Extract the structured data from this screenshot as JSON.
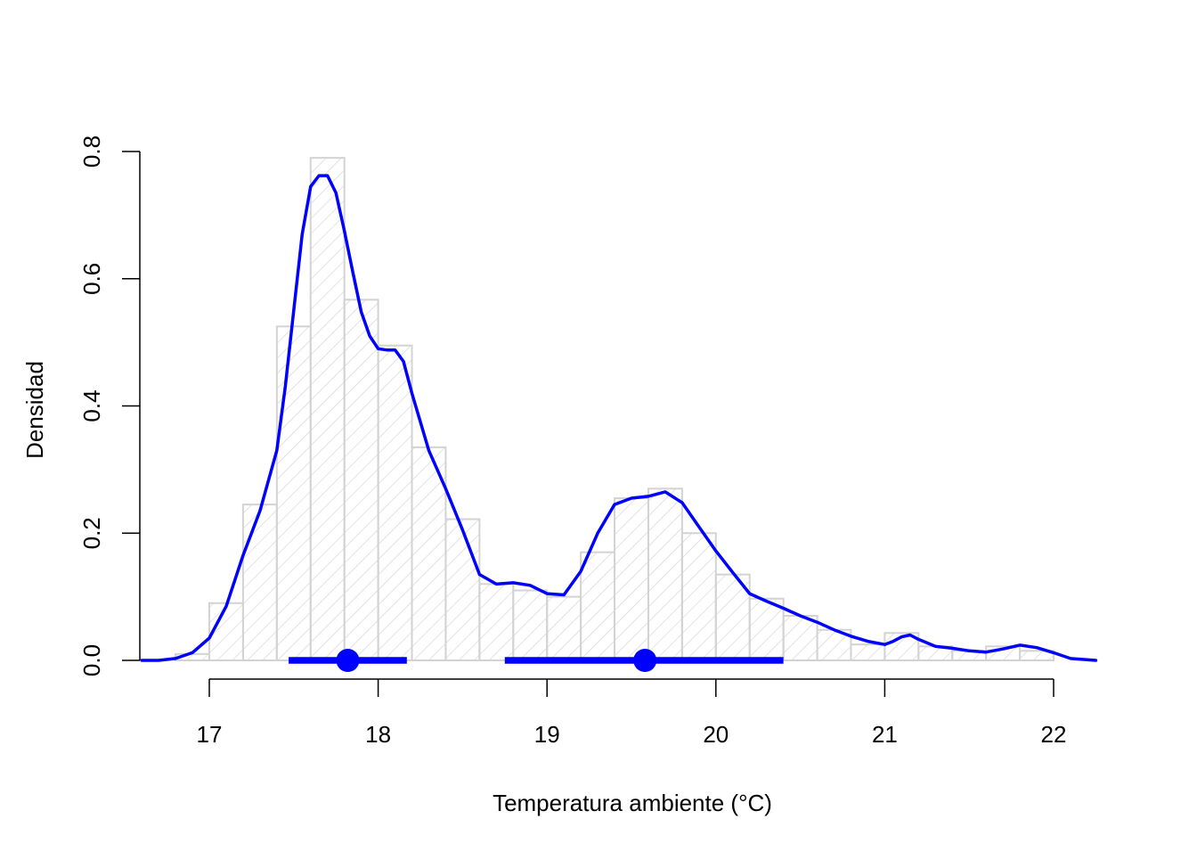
{
  "chart_data": {
    "type": "histogram",
    "title": "",
    "xlabel": "Temperatura ambiente (°C)",
    "ylabel": "Densidad",
    "xlim": [
      16.6,
      22.25
    ],
    "ylim": [
      0,
      0.8
    ],
    "x_ticks": [
      "17",
      "18",
      "19",
      "20",
      "21",
      "22"
    ],
    "y_ticks": [
      "0.0",
      "0.2",
      "0.4",
      "0.6",
      "0.8"
    ],
    "bin_width": 0.2,
    "bins": [
      {
        "x0": 16.8,
        "x1": 17.0,
        "density": 0.01
      },
      {
        "x0": 17.0,
        "x1": 17.2,
        "density": 0.09
      },
      {
        "x0": 17.2,
        "x1": 17.4,
        "density": 0.245
      },
      {
        "x0": 17.4,
        "x1": 17.6,
        "density": 0.525
      },
      {
        "x0": 17.6,
        "x1": 17.8,
        "density": 0.79
      },
      {
        "x0": 17.8,
        "x1": 18.0,
        "density": 0.567
      },
      {
        "x0": 18.0,
        "x1": 18.2,
        "density": 0.495
      },
      {
        "x0": 18.2,
        "x1": 18.4,
        "density": 0.335
      },
      {
        "x0": 18.4,
        "x1": 18.6,
        "density": 0.222
      },
      {
        "x0": 18.6,
        "x1": 18.8,
        "density": 0.12
      },
      {
        "x0": 18.8,
        "x1": 19.0,
        "density": 0.11
      },
      {
        "x0": 19.0,
        "x1": 19.2,
        "density": 0.1
      },
      {
        "x0": 19.2,
        "x1": 19.4,
        "density": 0.17
      },
      {
        "x0": 19.4,
        "x1": 19.6,
        "density": 0.255
      },
      {
        "x0": 19.6,
        "x1": 19.8,
        "density": 0.27
      },
      {
        "x0": 19.8,
        "x1": 20.0,
        "density": 0.2
      },
      {
        "x0": 20.0,
        "x1": 20.2,
        "density": 0.135
      },
      {
        "x0": 20.2,
        "x1": 20.4,
        "density": 0.097
      },
      {
        "x0": 20.4,
        "x1": 20.6,
        "density": 0.07
      },
      {
        "x0": 20.6,
        "x1": 20.8,
        "density": 0.048
      },
      {
        "x0": 20.8,
        "x1": 21.0,
        "density": 0.025
      },
      {
        "x0": 21.0,
        "x1": 21.2,
        "density": 0.043
      },
      {
        "x0": 21.2,
        "x1": 21.4,
        "density": 0.022
      },
      {
        "x0": 21.4,
        "x1": 21.6,
        "density": 0.015
      },
      {
        "x0": 21.6,
        "x1": 21.8,
        "density": 0.022
      },
      {
        "x0": 21.8,
        "x1": 22.0,
        "density": 0.015
      }
    ],
    "density_curve": {
      "x": [
        16.6,
        16.7,
        16.8,
        16.9,
        17.0,
        17.1,
        17.2,
        17.3,
        17.4,
        17.45,
        17.5,
        17.55,
        17.6,
        17.65,
        17.7,
        17.75,
        17.8,
        17.85,
        17.9,
        17.95,
        18.0,
        18.05,
        18.1,
        18.15,
        18.2,
        18.3,
        18.4,
        18.5,
        18.6,
        18.7,
        18.8,
        18.9,
        19.0,
        19.1,
        19.2,
        19.3,
        19.4,
        19.5,
        19.6,
        19.7,
        19.8,
        19.9,
        20.0,
        20.1,
        20.2,
        20.3,
        20.4,
        20.5,
        20.6,
        20.7,
        20.8,
        20.9,
        21.0,
        21.05,
        21.1,
        21.15,
        21.2,
        21.3,
        21.4,
        21.5,
        21.6,
        21.7,
        21.8,
        21.9,
        22.0,
        22.1,
        22.25
      ],
      "y": [
        0.0,
        0.0,
        0.003,
        0.012,
        0.035,
        0.085,
        0.165,
        0.235,
        0.33,
        0.43,
        0.55,
        0.67,
        0.745,
        0.762,
        0.762,
        0.735,
        0.675,
        0.61,
        0.548,
        0.51,
        0.49,
        0.488,
        0.488,
        0.47,
        0.42,
        0.33,
        0.27,
        0.205,
        0.135,
        0.12,
        0.122,
        0.118,
        0.105,
        0.103,
        0.14,
        0.2,
        0.245,
        0.255,
        0.258,
        0.265,
        0.248,
        0.21,
        0.172,
        0.138,
        0.105,
        0.093,
        0.082,
        0.07,
        0.06,
        0.048,
        0.038,
        0.03,
        0.025,
        0.03,
        0.037,
        0.04,
        0.033,
        0.022,
        0.019,
        0.015,
        0.013,
        0.018,
        0.024,
        0.02,
        0.012,
        0.003,
        0.0
      ]
    },
    "intervals": [
      {
        "low": 17.47,
        "high": 18.17,
        "point": 17.82
      },
      {
        "low": 18.75,
        "high": 20.4,
        "point": 19.58
      }
    ],
    "colors": {
      "bar_border": "#d3d3d3",
      "bar_hatch": "#d3d3d3",
      "curve": "#0000ff",
      "interval": "#0000ff",
      "axis": "#000000"
    }
  }
}
